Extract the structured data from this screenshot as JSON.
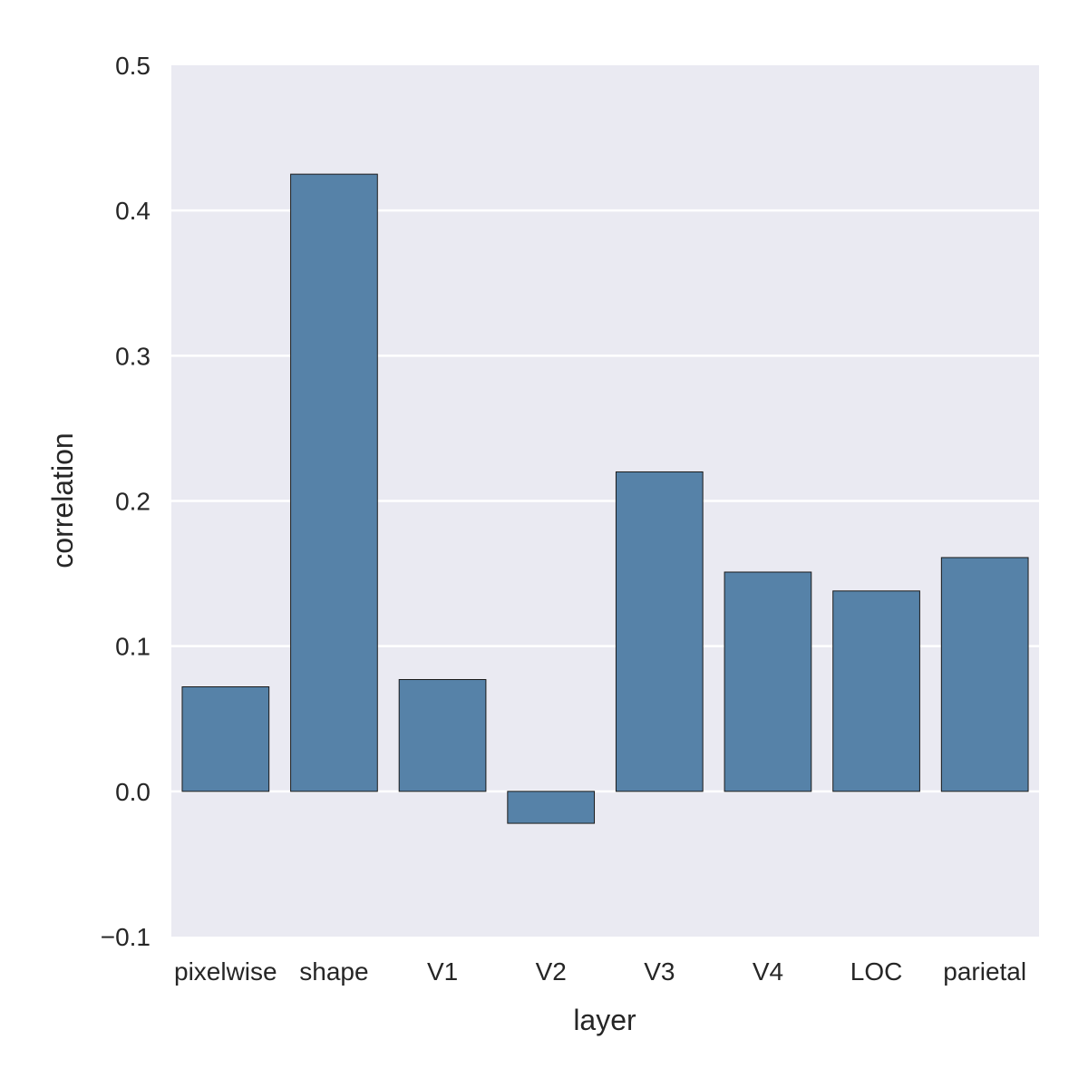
{
  "chart_data": {
    "type": "bar",
    "title": "",
    "xlabel": "layer",
    "ylabel": "correlation",
    "categories": [
      "pixelwise",
      "shape",
      "V1",
      "V2",
      "V3",
      "V4",
      "LOC",
      "parietal"
    ],
    "values": [
      0.072,
      0.425,
      0.077,
      -0.022,
      0.22,
      0.151,
      0.138,
      0.161
    ],
    "ylim": [
      -0.1,
      0.5
    ],
    "yticks": [
      "−0.1",
      "0.0",
      "0.1",
      "0.2",
      "0.3",
      "0.4",
      "0.5"
    ],
    "ytick_values": [
      -0.1,
      0.0,
      0.1,
      0.2,
      0.3,
      0.4,
      0.5
    ],
    "grid": true,
    "legend": "none",
    "colors": {
      "bar": "#5682a8",
      "bar_edge": "#1a1a1a",
      "plot_background": "#eaeaf2",
      "grid": "#ffffff",
      "text": "#262626"
    }
  }
}
